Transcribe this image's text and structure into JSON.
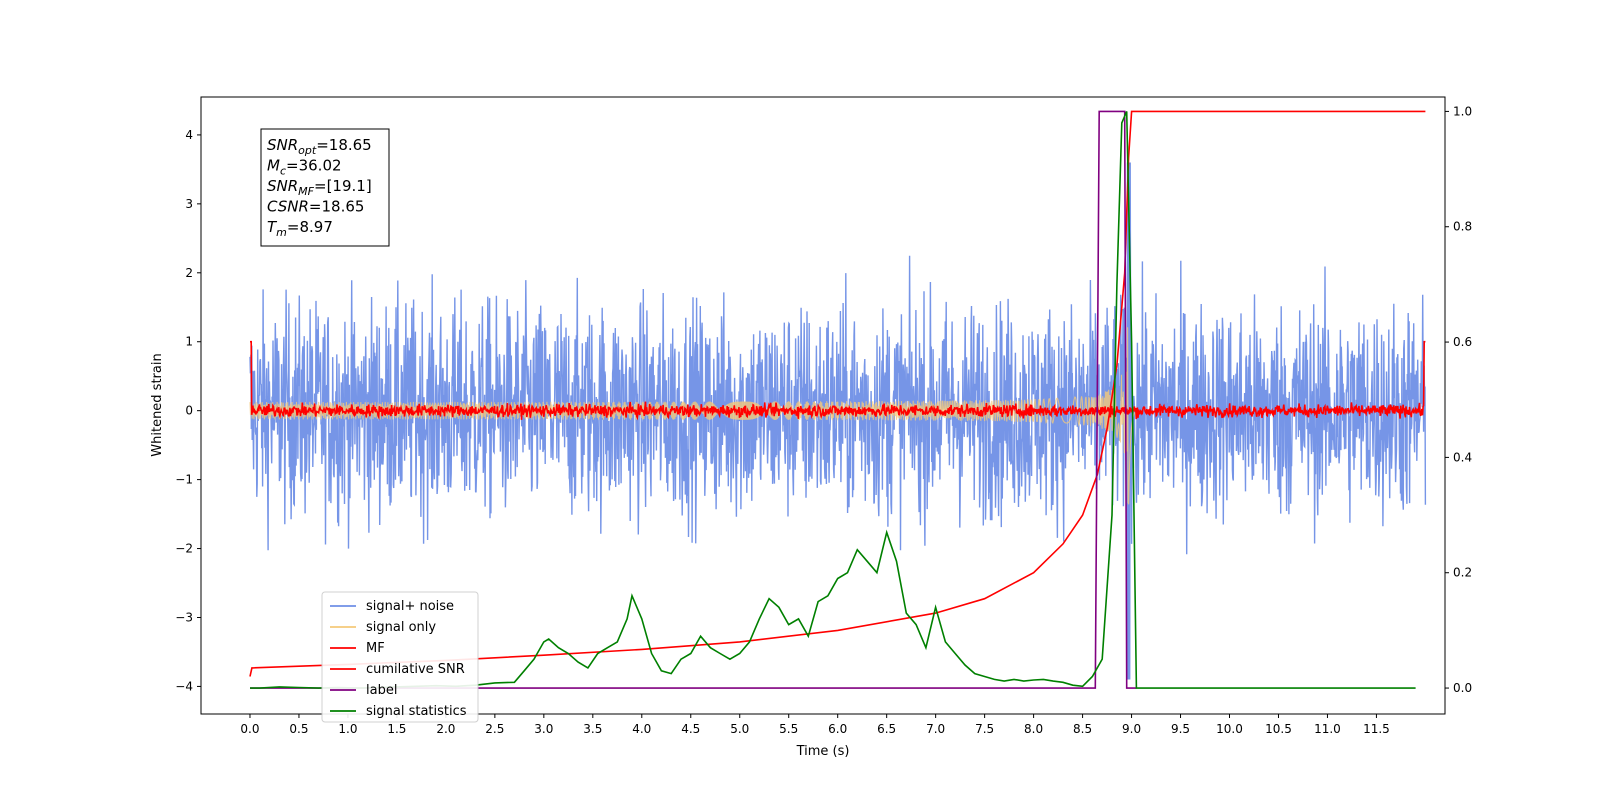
{
  "chart_data": {
    "type": "line",
    "title": "",
    "xlabel": "Time (s)",
    "ylabel": "Whitened strain",
    "xlim": [
      -0.5,
      12.2
    ],
    "ylim": [
      -4.4,
      4.55
    ],
    "y2lim": [
      -0.045,
      1.025
    ],
    "x_ticks": [
      "0.0",
      "0.5",
      "1.0",
      "1.5",
      "2.0",
      "2.5",
      "3.0",
      "3.5",
      "4.0",
      "4.5",
      "5.0",
      "5.5",
      "6.0",
      "6.5",
      "7.0",
      "7.5",
      "8.0",
      "8.5",
      "9.0",
      "9.5",
      "10.0",
      "10.5",
      "11.0",
      "11.5"
    ],
    "y_ticks": [
      "4",
      "3",
      "2",
      "1",
      "0",
      "−1",
      "−2",
      "−3",
      "−4"
    ],
    "y2_ticks": [
      "1.0",
      "0.8",
      "0.6",
      "0.4",
      "0.2",
      "0.0"
    ],
    "legend_position": "lower-left",
    "series": [
      {
        "name": "signal+ noise",
        "color": "#6f8fe6",
        "axis": "left",
        "kind": "noise",
        "x_range": [
          0,
          12
        ],
        "std": 1.0
      },
      {
        "name": "signal only",
        "color": "#f5c97a",
        "axis": "left",
        "kind": "chirp",
        "x_range": [
          0,
          9.05
        ],
        "peak_time": 8.97,
        "peak_amplitude": 1.6
      },
      {
        "name": "MF",
        "color": "#ff0000",
        "axis": "left",
        "kind": "mf",
        "x_range": [
          0,
          12
        ],
        "edge_value": 1.0
      },
      {
        "name": "cumilative SNR",
        "color": "#ff0000",
        "axis": "right",
        "x": [
          0.0,
          0.02,
          1.0,
          2.0,
          3.0,
          4.0,
          5.0,
          6.0,
          7.0,
          7.5,
          8.0,
          8.3,
          8.5,
          8.65,
          8.75,
          8.85,
          8.93,
          8.97,
          9.0,
          12.0
        ],
        "y": [
          0.02,
          0.035,
          0.041,
          0.048,
          0.057,
          0.067,
          0.08,
          0.1,
          0.13,
          0.155,
          0.2,
          0.25,
          0.3,
          0.37,
          0.45,
          0.56,
          0.72,
          0.92,
          1.0,
          1.0
        ]
      },
      {
        "name": "label",
        "color": "#800080",
        "axis": "right",
        "x": [
          0.0,
          8.63,
          8.67,
          8.93,
          8.95,
          9.05
        ],
        "y": [
          0.0,
          0.0,
          1.0,
          1.0,
          0.0,
          0.0
        ]
      },
      {
        "name": "signal statistics",
        "color": "#008000",
        "axis": "right",
        "x": [
          0.0,
          0.1,
          0.3,
          0.5,
          0.7,
          0.9,
          1.1,
          1.3,
          1.5,
          1.7,
          1.9,
          2.1,
          2.3,
          2.5,
          2.7,
          2.8,
          2.9,
          3.0,
          3.05,
          3.15,
          3.25,
          3.35,
          3.45,
          3.55,
          3.65,
          3.75,
          3.85,
          3.9,
          4.0,
          4.1,
          4.2,
          4.3,
          4.4,
          4.5,
          4.6,
          4.7,
          4.8,
          4.9,
          5.0,
          5.1,
          5.2,
          5.3,
          5.4,
          5.5,
          5.6,
          5.7,
          5.8,
          5.9,
          6.0,
          6.1,
          6.2,
          6.3,
          6.4,
          6.5,
          6.6,
          6.7,
          6.8,
          6.9,
          7.0,
          7.1,
          7.2,
          7.3,
          7.4,
          7.5,
          7.6,
          7.7,
          7.8,
          7.9,
          8.0,
          8.1,
          8.2,
          8.3,
          8.4,
          8.5,
          8.6,
          8.7,
          8.8,
          8.85,
          8.9,
          8.95,
          9.0,
          9.05,
          11.9
        ],
        "y": [
          0.0,
          0.0,
          0.002,
          0.001,
          0.0,
          0.001,
          0.0,
          0.001,
          0.002,
          0.003,
          0.004,
          0.003,
          0.005,
          0.009,
          0.01,
          0.03,
          0.05,
          0.08,
          0.085,
          0.07,
          0.06,
          0.045,
          0.035,
          0.06,
          0.07,
          0.08,
          0.12,
          0.16,
          0.12,
          0.06,
          0.03,
          0.025,
          0.05,
          0.06,
          0.09,
          0.07,
          0.06,
          0.05,
          0.06,
          0.08,
          0.12,
          0.155,
          0.14,
          0.11,
          0.12,
          0.09,
          0.15,
          0.16,
          0.19,
          0.2,
          0.24,
          0.22,
          0.2,
          0.27,
          0.22,
          0.13,
          0.11,
          0.07,
          0.14,
          0.08,
          0.06,
          0.04,
          0.025,
          0.02,
          0.015,
          0.012,
          0.015,
          0.012,
          0.014,
          0.015,
          0.012,
          0.01,
          0.005,
          0.003,
          0.02,
          0.05,
          0.3,
          0.7,
          0.98,
          1.0,
          0.6,
          0.0,
          0.0
        ]
      }
    ],
    "annotation_lines": [
      {
        "key": "SNR",
        "sub": "opt",
        "value": "=18.65"
      },
      {
        "key": "M",
        "sub": "c",
        "value": "=36.02"
      },
      {
        "key": "SNR",
        "sub": "MF",
        "value": "=[19.1]"
      },
      {
        "key": "CSNR",
        "sub": "",
        "value": "=18.65"
      },
      {
        "key": "T",
        "sub": "m",
        "value": "=8.97"
      }
    ]
  }
}
